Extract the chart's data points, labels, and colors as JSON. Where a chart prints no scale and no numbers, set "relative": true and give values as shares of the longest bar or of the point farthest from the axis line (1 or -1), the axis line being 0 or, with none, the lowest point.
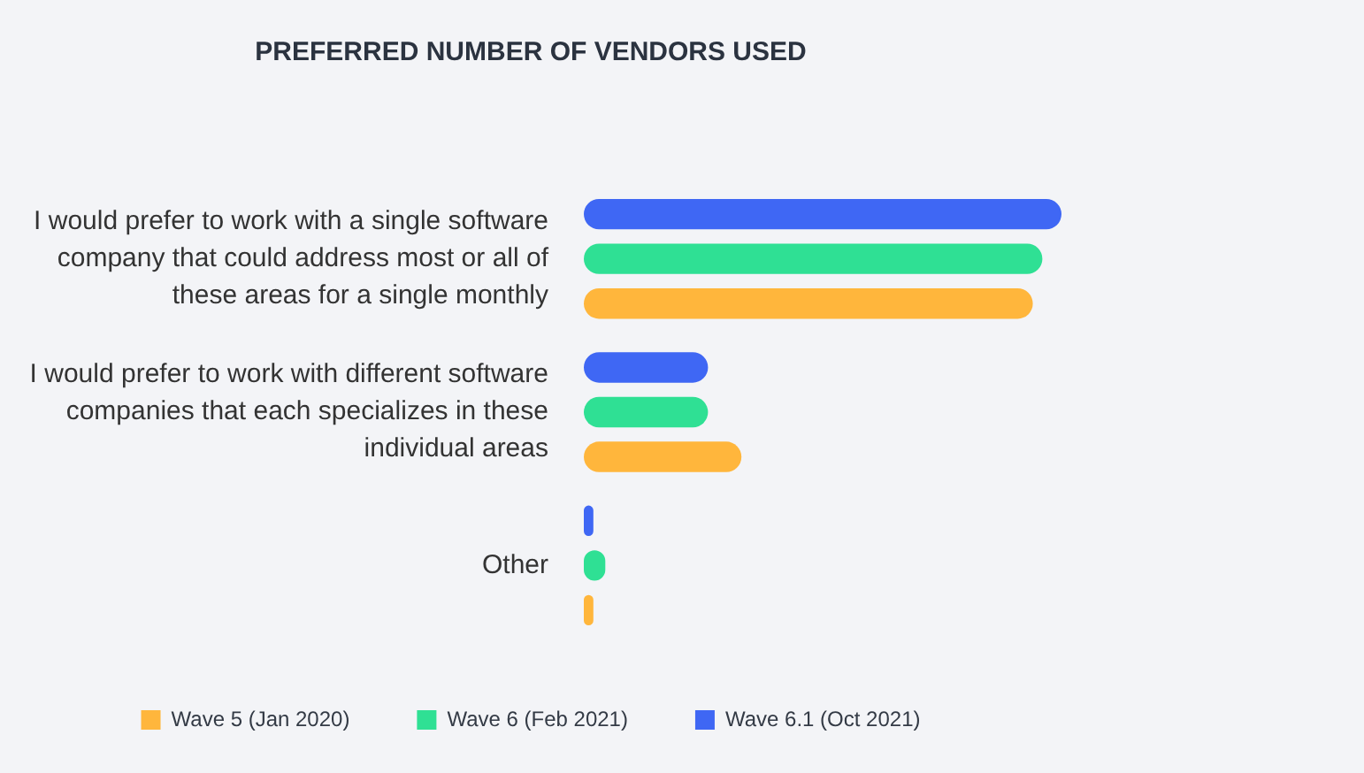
{
  "chart_data": {
    "type": "bar",
    "orientation": "horizontal",
    "relative": true,
    "title": "PREFERRED NUMBER OF VENDORS USED",
    "categories": [
      "I would prefer to work with a single software company that could address most or all of these areas for a single monthly",
      "I would prefer to work with different software companies that each specializes in these individual areas",
      "Other"
    ],
    "series": [
      {
        "name": "Wave 5 (Jan 2020)",
        "color": "#ffb63c",
        "values": [
          0.94,
          0.33,
          0.02
        ]
      },
      {
        "name": "Wave 6 (Feb 2021)",
        "color": "#2fe094",
        "values": [
          0.96,
          0.26,
          0.045
        ]
      },
      {
        "name": "Wave 6.1 (Oct 2021)",
        "color": "#3f67f4",
        "values": [
          1,
          0.26,
          0.02
        ]
      }
    ],
    "legend": "bottom"
  }
}
